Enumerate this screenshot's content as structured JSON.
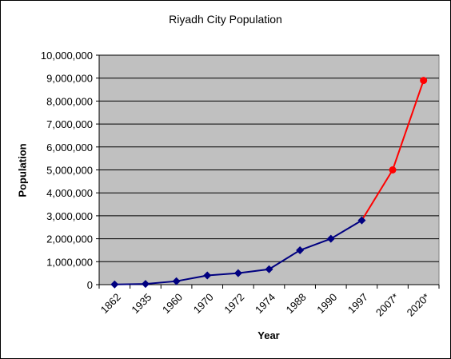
{
  "chart_data": {
    "type": "line",
    "title": "Riyadh City Population",
    "xlabel": "Year",
    "ylabel": "Population",
    "categories": [
      "1862",
      "1935",
      "1960",
      "1970",
      "1972",
      "1974",
      "1988",
      "1990",
      "1997",
      "2007*",
      "2020*"
    ],
    "ylim": [
      0,
      10000000
    ],
    "ytick_step": 1000000,
    "yticks": [
      "0",
      "1,000,000",
      "2,000,000",
      "3,000,000",
      "4,000,000",
      "5,000,000",
      "6,000,000",
      "7,000,000",
      "8,000,000",
      "9,000,000",
      "10,000,000"
    ],
    "series": [
      {
        "values": [
          8000,
          30000,
          150000,
          400000,
          500000,
          670000,
          1500000,
          2000000,
          2800000,
          5000000,
          8900000
        ],
        "color": "#000080",
        "projected_color": "#ff0000",
        "projected_from_index": 9
      }
    ],
    "plot_background": "#c0c0c0",
    "grid": true,
    "legend": "none"
  }
}
